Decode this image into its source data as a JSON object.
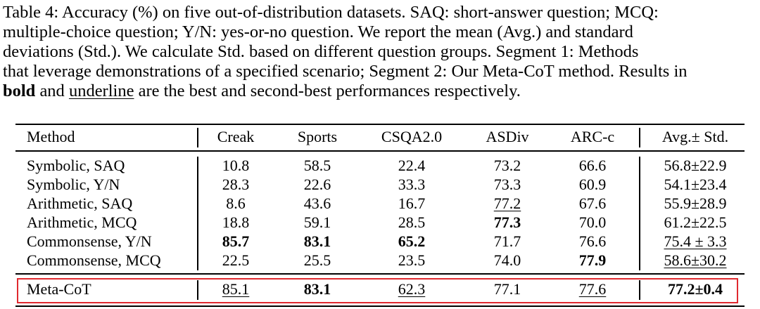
{
  "caption": {
    "lines": [
      "Table 4: Accuracy (%) on five out-of-distribution datasets. SAQ: short-answer question; MCQ:",
      "multiple-choice question; Y/N: yes-or-no question.  We report the mean (Avg.)  and standard",
      "deviations (Std.).  We calculate Std.  based on different question groups.  Segment 1: Methods",
      "that leverage demonstrations of a specified scenario; Segment 2: Our Meta-CoT method. Results in"
    ],
    "last_line": {
      "bold_word": "bold",
      "middle": " and ",
      "underline_word": "underline",
      "rest": " are the best and second-best performances respectively."
    }
  },
  "table": {
    "header": [
      "Method",
      "Creak",
      "Sports",
      "CSQA2.0",
      "ASDiv",
      "ARC-c",
      "Avg.± Std."
    ],
    "rows": [
      {
        "cells": [
          "Symbolic, SAQ",
          "10.8",
          "58.5",
          "22.4",
          "73.2",
          "66.6",
          "56.8±22.9"
        ],
        "bold": [],
        "underline": []
      },
      {
        "cells": [
          "Symbolic, Y/N",
          "28.3",
          "22.6",
          "33.3",
          "73.3",
          "60.9",
          "54.1±23.4"
        ],
        "bold": [],
        "underline": []
      },
      {
        "cells": [
          "Arithmetic, SAQ",
          "8.6",
          "43.6",
          "16.7",
          "77.2",
          "67.6",
          "55.9±28.9"
        ],
        "bold": [],
        "underline": [
          4
        ]
      },
      {
        "cells": [
          "Arithmetic, MCQ",
          "18.8",
          "59.1",
          "28.5",
          "77.3",
          "70.0",
          "61.2±22.5"
        ],
        "bold": [
          4
        ],
        "underline": []
      },
      {
        "cells": [
          "Commonsense, Y/N",
          "85.7",
          "83.1",
          "65.2",
          "71.7",
          "76.6",
          "75.4 ± 3.3"
        ],
        "bold": [
          1,
          2,
          3
        ],
        "underline": [
          6
        ]
      },
      {
        "cells": [
          "Commonsense, MCQ",
          "22.5",
          "25.5",
          "23.5",
          "74.0",
          "77.9",
          "58.6±30.2"
        ],
        "bold": [
          5
        ],
        "underline": [
          6
        ]
      }
    ],
    "highlighted_row": {
      "cells": [
        "Meta-CoT",
        "85.1",
        "83.1",
        "62.3",
        "77.1",
        "77.6",
        "77.2±0.4"
      ],
      "bold": [
        2,
        6
      ],
      "underline": [
        1,
        3,
        5
      ]
    }
  }
}
